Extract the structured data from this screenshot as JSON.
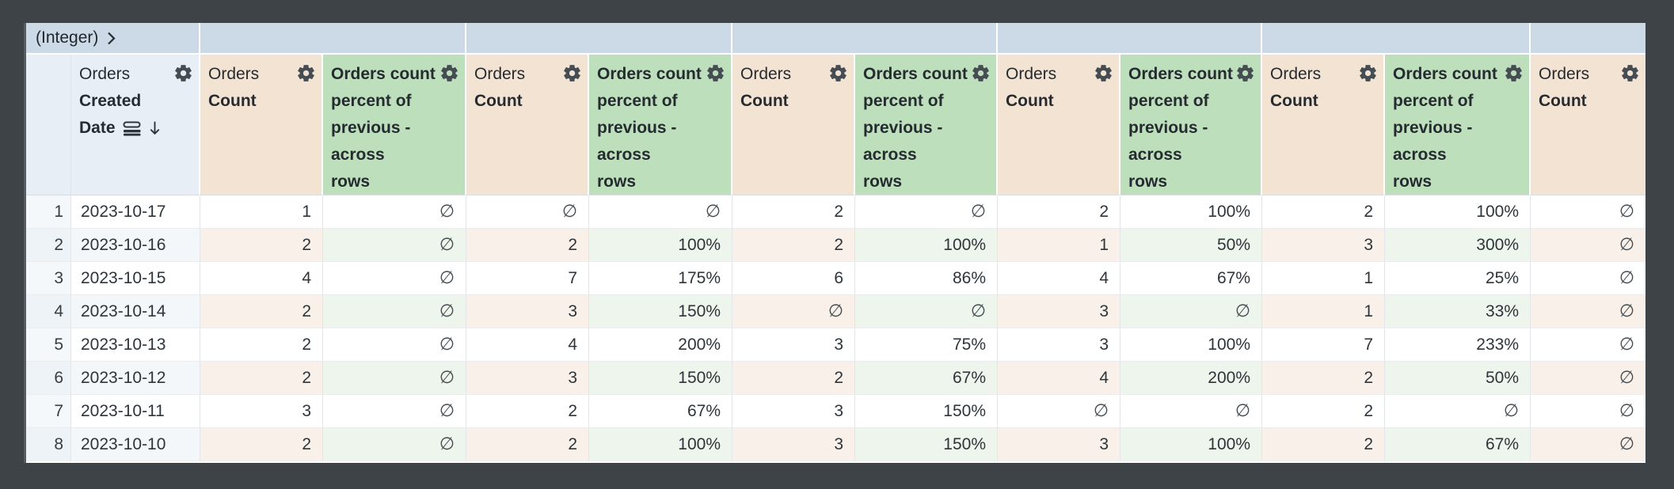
{
  "pivot_band": {
    "label": "(Integer)",
    "expand_icon": "chevron-right-icon"
  },
  "columns": {
    "dimension": {
      "view": "Orders",
      "field_lines": [
        "Created",
        "Date"
      ],
      "sort_direction": "descending",
      "icons": [
        "granularity-icon",
        "sort-arrow-down-icon",
        "gear-icon"
      ]
    },
    "measure": {
      "view": "Orders",
      "field": "Count",
      "icon": "gear-icon"
    },
    "table_calc": {
      "label_lines": [
        "Orders count",
        "percent of",
        "previous -",
        "across",
        "rows"
      ],
      "icon": "gear-icon"
    },
    "order": [
      "measure",
      "table_calc",
      "measure",
      "table_calc",
      "measure",
      "table_calc",
      "measure",
      "table_calc",
      "measure",
      "table_calc",
      "measure"
    ]
  },
  "rows": [
    {
      "index": "1",
      "date": "2023-10-17",
      "values": [
        "1",
        "∅",
        "∅",
        "∅",
        "2",
        "∅",
        "2",
        "100%",
        "2",
        "100%",
        "∅"
      ]
    },
    {
      "index": "2",
      "date": "2023-10-16",
      "values": [
        "2",
        "∅",
        "2",
        "100%",
        "2",
        "100%",
        "1",
        "50%",
        "3",
        "300%",
        "∅"
      ]
    },
    {
      "index": "3",
      "date": "2023-10-15",
      "values": [
        "4",
        "∅",
        "7",
        "175%",
        "6",
        "86%",
        "4",
        "67%",
        "1",
        "25%",
        "∅"
      ]
    },
    {
      "index": "4",
      "date": "2023-10-14",
      "values": [
        "2",
        "∅",
        "3",
        "150%",
        "∅",
        "∅",
        "3",
        "∅",
        "1",
        "33%",
        "∅"
      ]
    },
    {
      "index": "5",
      "date": "2023-10-13",
      "values": [
        "2",
        "∅",
        "4",
        "200%",
        "3",
        "75%",
        "3",
        "100%",
        "7",
        "233%",
        "∅"
      ]
    },
    {
      "index": "6",
      "date": "2023-10-12",
      "values": [
        "2",
        "∅",
        "3",
        "150%",
        "2",
        "67%",
        "4",
        "200%",
        "2",
        "50%",
        "∅"
      ]
    },
    {
      "index": "7",
      "date": "2023-10-11",
      "values": [
        "3",
        "∅",
        "2",
        "67%",
        "3",
        "150%",
        "∅",
        "∅",
        "2",
        "∅",
        "∅"
      ]
    },
    {
      "index": "8",
      "date": "2023-10-10",
      "values": [
        "2",
        "∅",
        "2",
        "100%",
        "3",
        "150%",
        "3",
        "100%",
        "2",
        "67%",
        "∅"
      ]
    }
  ],
  "null_symbol": "∅",
  "colors": {
    "frame_bg": "#3e4347",
    "pivot_band_bg": "#ccd9e6",
    "dimension_header_bg": "#e8eef6",
    "measure_header_bg": "#f3e3d3",
    "table_calc_header_bg": "#bddfbc",
    "measure_row_tint": "#f9f1e9",
    "table_calc_row_tint": "#edf5ec",
    "header_text": "#252b30"
  }
}
